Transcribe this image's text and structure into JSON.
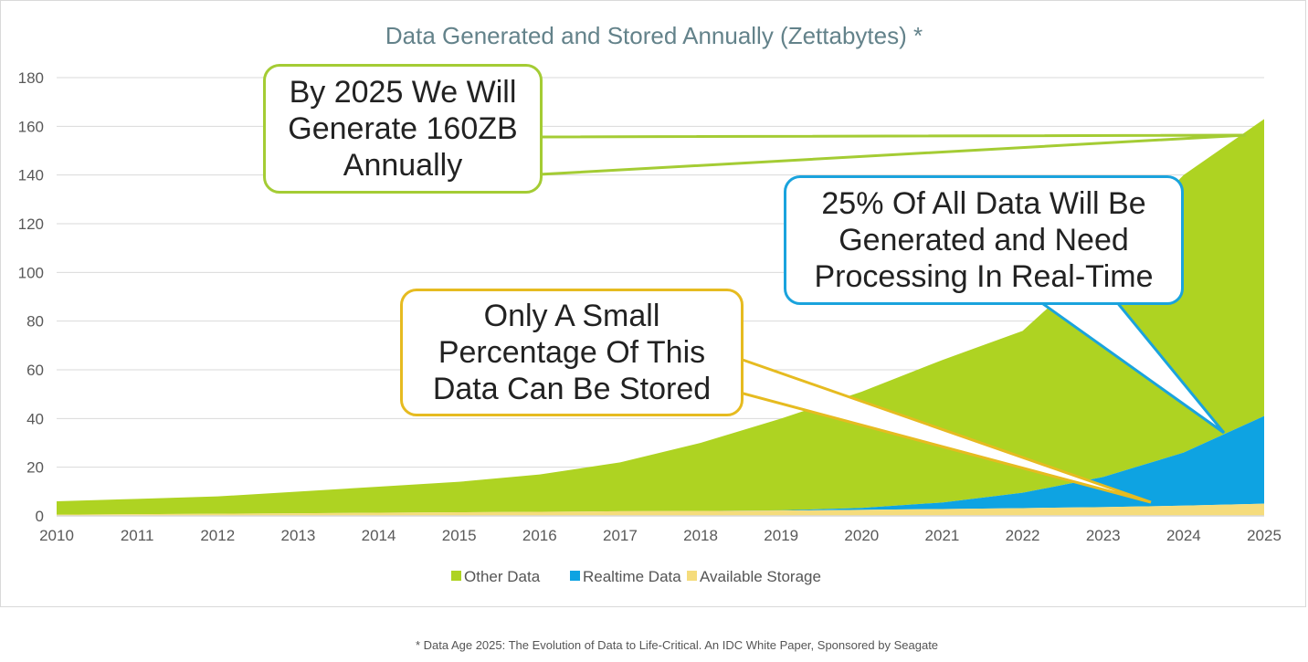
{
  "chart_data": {
    "type": "area",
    "stacked": true,
    "title": "Data Generated and Stored Annually (Zettabytes) *",
    "xlabel": "",
    "ylabel": "",
    "x": [
      "2010",
      "2011",
      "2012",
      "2013",
      "2014",
      "2015",
      "2016",
      "2017",
      "2018",
      "2019",
      "2020",
      "2021",
      "2022",
      "2023",
      "2024",
      "2025"
    ],
    "ylim": [
      0,
      180
    ],
    "yticks": [
      0,
      20,
      40,
      60,
      80,
      100,
      120,
      140,
      160,
      180
    ],
    "grid": "horizontal",
    "legend": "bottom",
    "series": [
      {
        "name": "Available Storage",
        "color": "#f5dc7c",
        "values": [
          0.5,
          0.7,
          0.9,
          1.1,
          1.3,
          1.5,
          1.7,
          1.9,
          2.0,
          2.2,
          2.5,
          2.8,
          3.2,
          3.6,
          4.2,
          5.0
        ]
      },
      {
        "name": "Realtime Data",
        "color": "#0ea3e2",
        "values": [
          0,
          0,
          0,
          0,
          0,
          0,
          0,
          0,
          0,
          0.1,
          0.8,
          2.7,
          6.3,
          12.4,
          21.8,
          36.0
        ]
      },
      {
        "name": "Other Data",
        "color": "#aed322",
        "values": [
          5.5,
          6.3,
          7.1,
          8.9,
          10.7,
          12.5,
          15.3,
          20.1,
          28.0,
          37.7,
          47.7,
          58.5,
          66.5,
          90.0,
          114.0,
          122.0
        ]
      }
    ],
    "legend_order": [
      "Other Data",
      "Realtime Data",
      "Available Storage"
    ]
  },
  "annotations": [
    {
      "lines": [
        "By 2025 We Will",
        "Generate 160ZB",
        "Annually"
      ],
      "color": "#a4cc34"
    },
    {
      "lines": [
        "25% Of All Data Will Be",
        "Generated and Need",
        "Processing In Real-Time"
      ],
      "color": "#1aa3dd"
    },
    {
      "lines": [
        "Only A Small",
        "Percentage Of This",
        "Data Can Be Stored"
      ],
      "color": "#e6bb20"
    }
  ],
  "footnote": "* Data Age 2025: The Evolution of Data to Life-Critical. An IDC White Paper, Sponsored by Seagate",
  "colors": {
    "title": "#63828a",
    "axis_text": "#595959",
    "grid": "#d9d9d9"
  }
}
